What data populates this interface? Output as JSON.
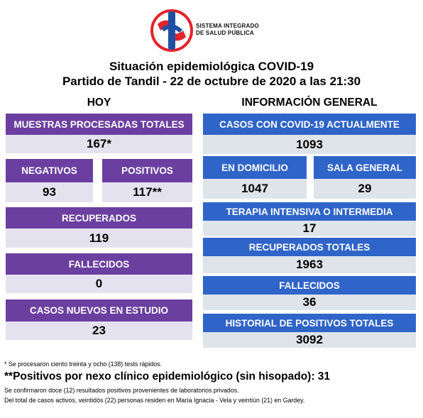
{
  "header": {
    "logo_line1": "SISTEMA INTEGRADO",
    "logo_line2": "DE SALUD PÚBLICA",
    "title_line1": "Situación epidemiológica COVID-19",
    "title_line2": "Partido de Tandil - 22 de octubre de 2020 a las 21:30"
  },
  "hoy": {
    "heading": "HOY",
    "muestras": {
      "label": "MUESTRAS PROCESADAS TOTALES",
      "value": "167*"
    },
    "negativos": {
      "label": "NEGATIVOS",
      "value": "93"
    },
    "positivos": {
      "label": "POSITIVOS",
      "value": "117**"
    },
    "recuperados": {
      "label": "RECUPERADOS",
      "value": "119"
    },
    "fallecidos": {
      "label": "FALLECIDOS",
      "value": "0"
    },
    "nuevos": {
      "label": "CASOS NUEVOS EN ESTUDIO",
      "value": "23"
    }
  },
  "general": {
    "heading": "INFORMACIÓN GENERAL",
    "actuales": {
      "label": "CASOS CON COVID-19 ACTUALMENTE",
      "value": "1093"
    },
    "domicilio": {
      "label": "EN DOMICILIO",
      "value": "1047"
    },
    "sala": {
      "label": "SALA GENERAL",
      "value": "29"
    },
    "terapia": {
      "label": "TERAPIA INTENSIVA O INTERMEDIA",
      "value": "17"
    },
    "recuperados": {
      "label": "RECUPERADOS TOTALES",
      "value": "1963"
    },
    "fallecidos": {
      "label": "FALLECIDOS",
      "value": "36"
    },
    "historial": {
      "label": "HISTORIAL DE POSITIVOS TOTALES",
      "value": "3092"
    }
  },
  "footnotes": {
    "note1": "* Se procesaron ciento treinta y ocho (138) tests rápidos.",
    "note2": "**Positivos por nexo clínico epidemiológico (sin hisopado): 31",
    "note3": "Se confirmaron doce (12) resultados positivos provenientes de laboratorios privados.",
    "note4": "Del total de casos activos, veintidós (22) personas residen en María Ignacia - Vela y veintiún (21) en Gardey."
  },
  "colors": {
    "purple_header": "#6b3fa0",
    "purple_value_bg": "#e4e2ee",
    "blue_header": "#2f64c8",
    "blue_value_bg": "#dfe3ea",
    "logo_red": "#e3232b",
    "logo_blue": "#1f4fa3"
  }
}
